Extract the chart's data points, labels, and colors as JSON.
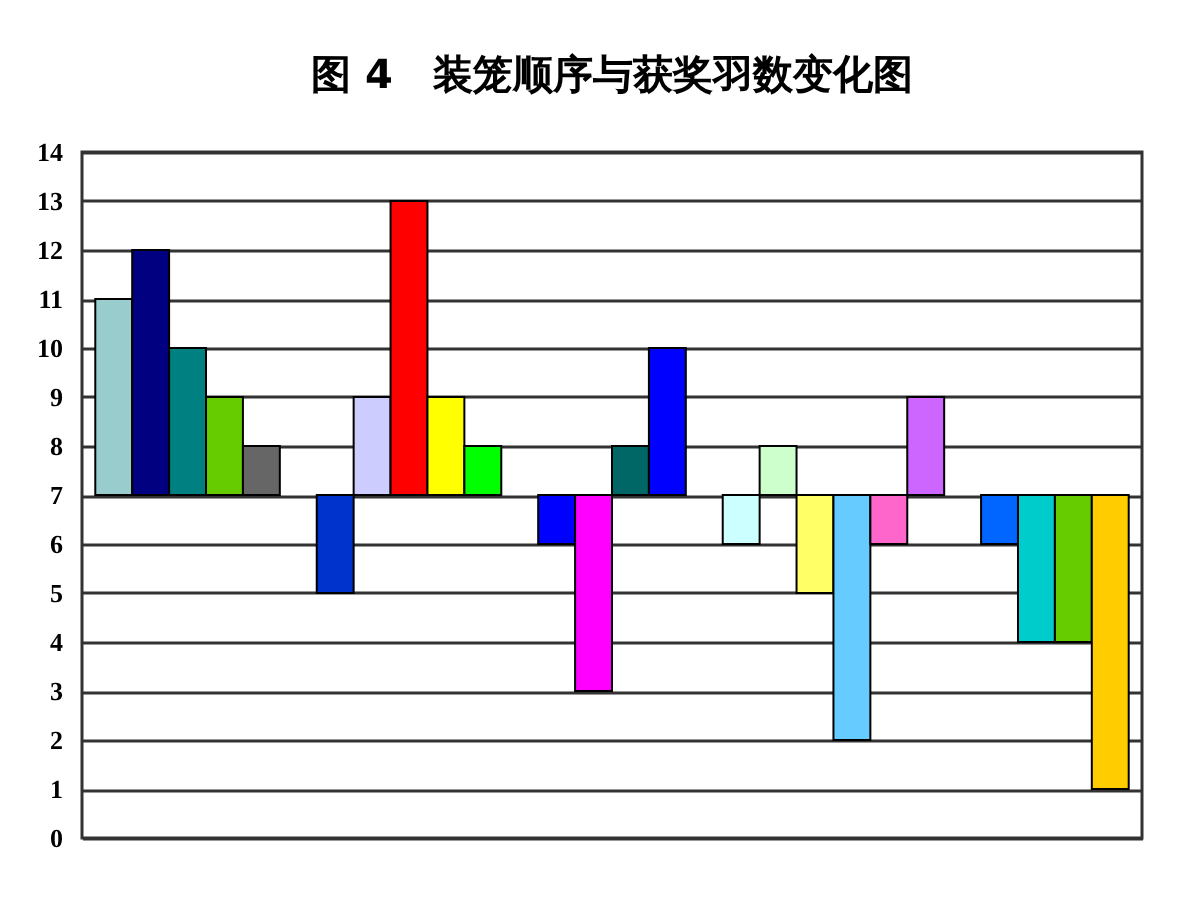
{
  "chart_data": {
    "type": "bar",
    "title": "图 4　装笼顺序与获奖羽数变化图",
    "categories": [
      null,
      null,
      null,
      null,
      null,
      null,
      null,
      null,
      null,
      null,
      null,
      null,
      null,
      null,
      null,
      null,
      null,
      null,
      null,
      null,
      null,
      null,
      null,
      null,
      null,
      null,
      null,
      null
    ],
    "base": [
      7,
      7,
      7,
      7,
      7,
      null,
      7,
      7,
      7,
      7,
      7,
      null,
      7,
      7,
      7,
      7,
      null,
      7,
      7,
      7,
      7,
      7,
      7,
      null,
      7,
      7,
      7,
      7
    ],
    "values": [
      4,
      5,
      3,
      2,
      1,
      null,
      -2,
      2,
      6,
      2,
      1,
      null,
      -1,
      -4,
      1,
      3,
      null,
      -1,
      1,
      -2,
      -5,
      -1,
      2,
      null,
      -1,
      -3,
      -3,
      -6
    ],
    "colors": [
      "#99cccc",
      "#000080",
      "#008080",
      "#66cc00",
      "#666666",
      null,
      "#0033cc",
      "#ccccff",
      "#ff0000",
      "#ffff00",
      "#00ff00",
      null,
      "#0000ff",
      "#ff00ff",
      "#006666",
      "#0000ff",
      null,
      "#ccffff",
      "#ccffcc",
      "#ffff66",
      "#66ccff",
      "#ff66cc",
      "#cc66ff",
      null,
      "#0066ff",
      "#00cccc",
      "#66cc00",
      "#ffcc00"
    ],
    "ylim": [
      0,
      14
    ],
    "yticks": [
      0,
      1,
      2,
      3,
      4,
      5,
      6,
      7,
      8,
      9,
      10,
      11,
      12,
      13,
      14
    ],
    "grid": "y",
    "tick_labels": "y"
  }
}
